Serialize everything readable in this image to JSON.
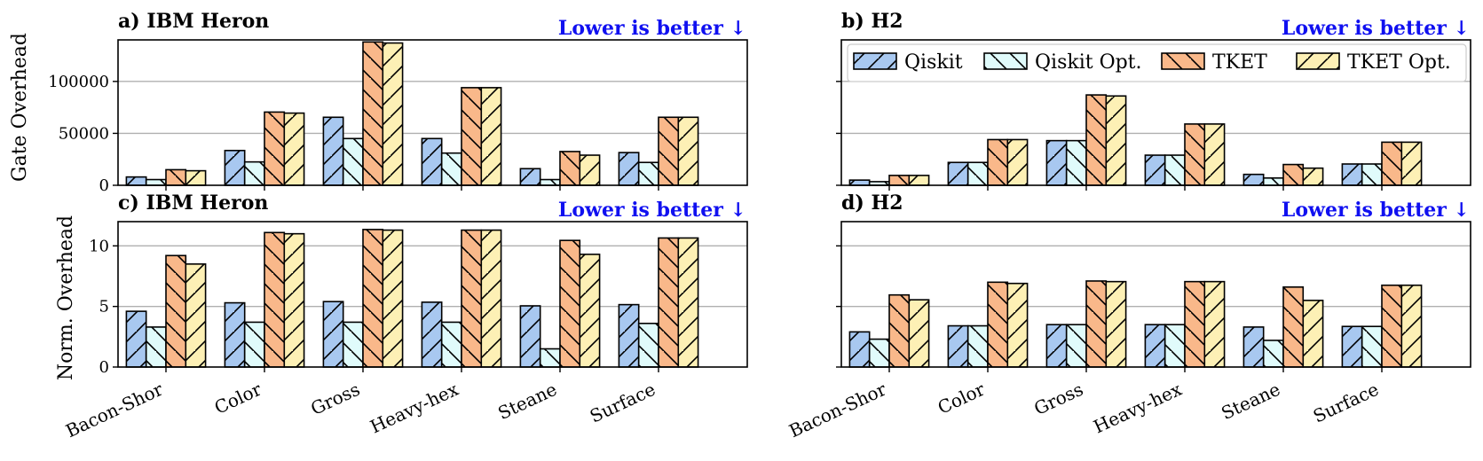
{
  "page": {
    "background": "#ffffff"
  },
  "style": {
    "series_colors": [
      "#a8c8f0",
      "#e0fbfb",
      "#f9b88a",
      "#fdf0b5"
    ],
    "series_hatch": [
      "slash",
      "backslash",
      "backslash",
      "slash"
    ],
    "note_color": "#1010f0",
    "grid_color": "#b0b0b0"
  },
  "legend": {
    "items": [
      "Qiskit",
      "Qiskit Opt.",
      "TKET",
      "TKET Opt."
    ],
    "placement": "top (panel b)"
  },
  "chart_data": [
    {
      "type": "bar",
      "title": "a) IBM Heron",
      "note": "Lower is better ↓",
      "xlabel": "",
      "ylabel": "Gate Overhead",
      "ylim": [
        0,
        140000
      ],
      "yticks": [
        0,
        50000,
        100000
      ],
      "ytick_labels": [
        "0",
        "50000",
        "100000"
      ],
      "grid": true,
      "categories": [
        "Bacon-Shor",
        "Color",
        "Gross",
        "Heavy-hex",
        "Steane",
        "Surface"
      ],
      "series": [
        {
          "name": "Qiskit",
          "values": [
            8000,
            33500,
            65500,
            45000,
            16000,
            31500
          ]
        },
        {
          "name": "Qiskit Opt.",
          "values": [
            5500,
            22500,
            45000,
            31000,
            5500,
            22000
          ]
        },
        {
          "name": "TKET",
          "values": [
            15000,
            70500,
            138000,
            94000,
            32500,
            65500
          ]
        },
        {
          "name": "TKET Opt.",
          "values": [
            14000,
            69500,
            137000,
            94000,
            29000,
            65500
          ]
        }
      ]
    },
    {
      "type": "bar",
      "title": "b) H2",
      "note": "Lower is better ↓",
      "xlabel": "",
      "ylabel": "",
      "ylim": [
        0,
        140000
      ],
      "yticks": [
        0,
        50000,
        100000
      ],
      "ytick_labels": [
        "",
        "",
        ""
      ],
      "grid": true,
      "legend": true,
      "categories": [
        "Bacon-Shor",
        "Color",
        "Gross",
        "Heavy-hex",
        "Steane",
        "Surface"
      ],
      "series": [
        {
          "name": "Qiskit",
          "values": [
            5000,
            22000,
            43000,
            29000,
            10500,
            20500
          ]
        },
        {
          "name": "Qiskit Opt.",
          "values": [
            3500,
            22000,
            43000,
            29000,
            7000,
            20500
          ]
        },
        {
          "name": "TKET",
          "values": [
            9500,
            44000,
            87000,
            59000,
            20000,
            41500
          ]
        },
        {
          "name": "TKET Opt.",
          "values": [
            9500,
            44000,
            86000,
            59000,
            16500,
            41500
          ]
        }
      ]
    },
    {
      "type": "bar",
      "title": "c) IBM Heron",
      "note": "Lower is better ↓",
      "xlabel": "",
      "ylabel": "Norm. Overhead",
      "ylim": [
        0,
        12
      ],
      "yticks": [
        0,
        5,
        10
      ],
      "ytick_labels": [
        "0",
        "5",
        "10"
      ],
      "grid": true,
      "categories": [
        "Bacon-Shor",
        "Color",
        "Gross",
        "Heavy-hex",
        "Steane",
        "Surface"
      ],
      "series": [
        {
          "name": "Qiskit",
          "values": [
            4.6,
            5.3,
            5.4,
            5.35,
            5.05,
            5.15
          ]
        },
        {
          "name": "Qiskit Opt.",
          "values": [
            3.3,
            3.7,
            3.7,
            3.7,
            1.5,
            3.6
          ]
        },
        {
          "name": "TKET",
          "values": [
            9.2,
            11.1,
            11.35,
            11.3,
            10.45,
            10.65
          ]
        },
        {
          "name": "TKET Opt.",
          "values": [
            8.5,
            11.0,
            11.3,
            11.3,
            9.3,
            10.65
          ]
        }
      ]
    },
    {
      "type": "bar",
      "title": "d) H2",
      "note": "Lower is better ↓",
      "xlabel": "",
      "ylabel": "",
      "ylim": [
        0,
        12
      ],
      "yticks": [
        0,
        5,
        10
      ],
      "ytick_labels": [
        "",
        "",
        ""
      ],
      "grid": true,
      "categories": [
        "Bacon-Shor",
        "Color",
        "Gross",
        "Heavy-hex",
        "Steane",
        "Surface"
      ],
      "series": [
        {
          "name": "Qiskit",
          "values": [
            2.9,
            3.4,
            3.5,
            3.5,
            3.3,
            3.35
          ]
        },
        {
          "name": "Qiskit Opt.",
          "values": [
            2.3,
            3.4,
            3.5,
            3.5,
            2.2,
            3.35
          ]
        },
        {
          "name": "TKET",
          "values": [
            5.95,
            7.0,
            7.1,
            7.05,
            6.6,
            6.75
          ]
        },
        {
          "name": "TKET Opt.",
          "values": [
            5.55,
            6.9,
            7.05,
            7.05,
            5.5,
            6.75
          ]
        }
      ]
    }
  ]
}
